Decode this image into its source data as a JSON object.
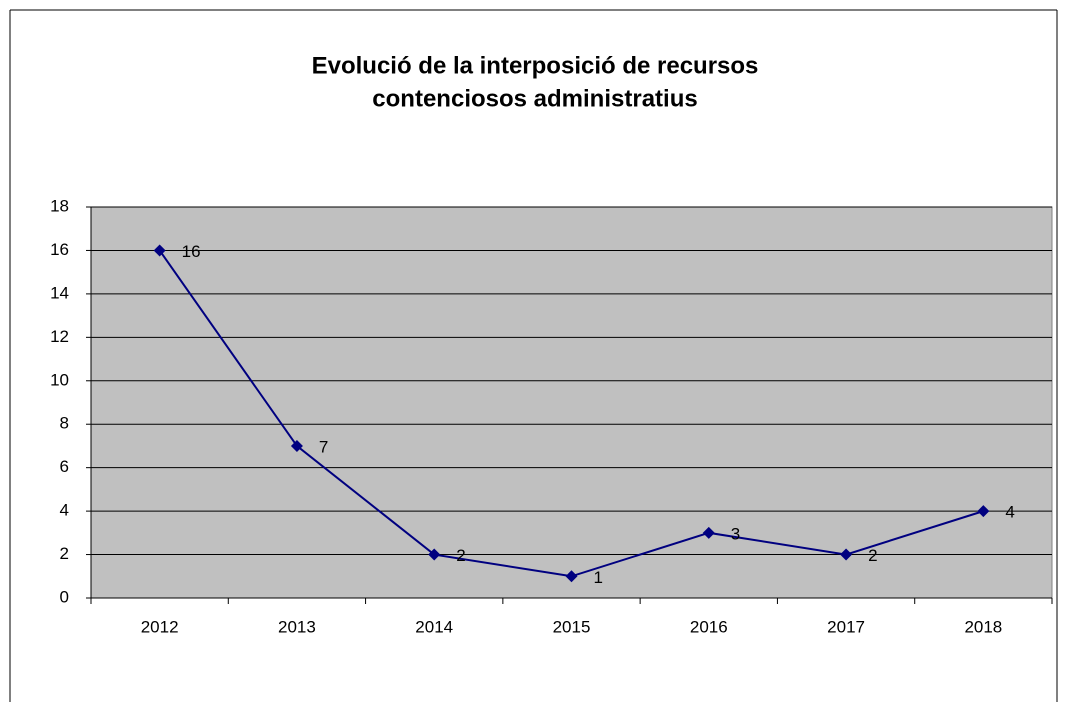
{
  "chart_data": {
    "type": "line",
    "title": [
      "Evolució de la interposició de recursos",
      "contenciosos administratius"
    ],
    "categories": [
      "2012",
      "2013",
      "2014",
      "2015",
      "2016",
      "2017",
      "2018"
    ],
    "series": [
      {
        "name": null,
        "color": "#000080",
        "values": [
          16,
          7,
          2,
          1,
          3,
          2,
          4
        ]
      }
    ],
    "ylim": [
      0,
      18
    ],
    "yticks": [
      0,
      2,
      4,
      6,
      8,
      10,
      12,
      14,
      16,
      18
    ],
    "grid": true,
    "plot_background": "#c0c0c0"
  }
}
